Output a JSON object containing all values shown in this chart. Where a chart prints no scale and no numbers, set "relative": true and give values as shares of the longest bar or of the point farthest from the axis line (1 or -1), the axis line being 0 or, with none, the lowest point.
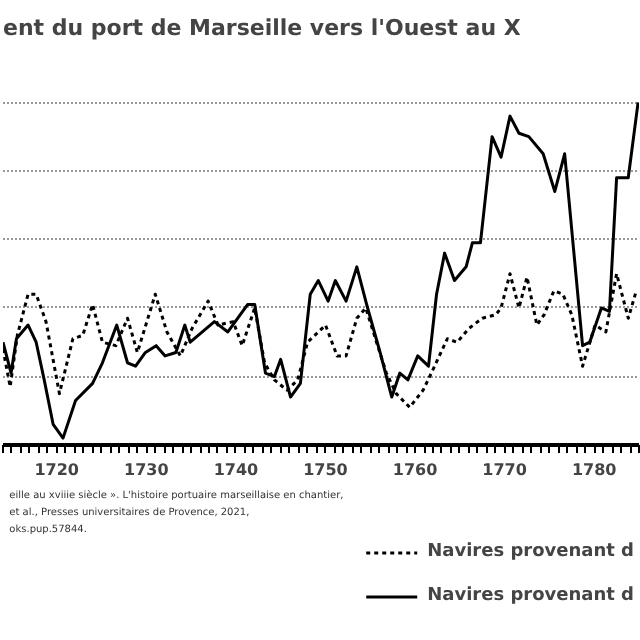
{
  "chart_data": {
    "type": "line",
    "title": "ent du port de Marseille vers l'Ouest au X",
    "relative": true,
    "xlim": [
      1714,
      1785
    ],
    "xticks": [
      1720,
      1730,
      1740,
      1750,
      1760,
      1770,
      1780
    ],
    "grid": "y",
    "legend": "bottom right",
    "annotations": [
      "eille au xviiie siècle ». L'histoire portuaire marseillaise en chantier,",
      "et al., Presses universitaires de Provence, 2021,",
      "oks.pup.57844."
    ],
    "series": [
      {
        "name": "Navires provenant d",
        "color": "#000000",
        "line_style": "dotted",
        "x": [
          1714.0,
          1714.8,
          1715.6,
          1716.8,
          1717.7,
          1718.8,
          1720.3,
          1721.8,
          1722.9,
          1724.0,
          1725.1,
          1726.6,
          1727.9,
          1729.0,
          1731.0,
          1732.3,
          1733.8,
          1735.1,
          1736.9,
          1738.0,
          1739.7,
          1740.7,
          1742.1,
          1743.2,
          1744.3,
          1745.7,
          1746.9,
          1748.0,
          1750.0,
          1751.3,
          1752.3,
          1753.5,
          1754.5,
          1755.7,
          1756.8,
          1757.9,
          1759.4,
          1760.9,
          1762.0,
          1763.6,
          1764.7,
          1766.0,
          1767.5,
          1769.0,
          1769.6,
          1770.6,
          1771.6,
          1772.5,
          1773.6,
          1774.4,
          1775.5,
          1776.5,
          1777.5,
          1778.7,
          1780.1,
          1781.3,
          1782.5,
          1783.8,
          1784.7
        ],
        "values": [
          0.28,
          0.17,
          0.32,
          0.44,
          0.44,
          0.36,
          0.15,
          0.31,
          0.32,
          0.41,
          0.3,
          0.29,
          0.37,
          0.27,
          0.44,
          0.33,
          0.26,
          0.34,
          0.42,
          0.35,
          0.36,
          0.29,
          0.4,
          0.24,
          0.19,
          0.16,
          0.19,
          0.3,
          0.35,
          0.26,
          0.26,
          0.37,
          0.4,
          0.3,
          0.21,
          0.15,
          0.11,
          0.16,
          0.22,
          0.31,
          0.3,
          0.34,
          0.37,
          0.38,
          0.4,
          0.5,
          0.4,
          0.49,
          0.35,
          0.38,
          0.45,
          0.44,
          0.38,
          0.23,
          0.35,
          0.33,
          0.5,
          0.37,
          0.45
        ]
      },
      {
        "name": "Navires provenant d",
        "color": "#000000",
        "line_style": "solid",
        "x": [
          1714.0,
          1714.9,
          1715.5,
          1716.8,
          1717.7,
          1718.6,
          1719.6,
          1720.7,
          1722.1,
          1724.0,
          1725.1,
          1726.7,
          1727.9,
          1728.8,
          1729.9,
          1731.1,
          1732.1,
          1733.3,
          1734.3,
          1734.9,
          1737.6,
          1739.1,
          1741.3,
          1742.1,
          1743.3,
          1744.3,
          1745.0,
          1746.1,
          1747.2,
          1748.3,
          1749.2,
          1750.3,
          1751.1,
          1752.3,
          1753.5,
          1754.6,
          1756.1,
          1757.4,
          1758.3,
          1759.2,
          1760.3,
          1761.5,
          1762.4,
          1763.3,
          1764.4,
          1765.7,
          1766.4,
          1767.3,
          1768.6,
          1769.6,
          1770.6,
          1771.6,
          1772.7,
          1774.3,
          1775.6,
          1776.7,
          1778.7,
          1779.5,
          1780.8,
          1781.7,
          1782.5,
          1783.8,
          1784.9
        ],
        "values": [
          0.3,
          0.21,
          0.31,
          0.35,
          0.3,
          0.19,
          0.06,
          0.02,
          0.13,
          0.18,
          0.24,
          0.35,
          0.24,
          0.23,
          0.27,
          0.29,
          0.26,
          0.27,
          0.35,
          0.3,
          0.36,
          0.33,
          0.41,
          0.41,
          0.21,
          0.2,
          0.25,
          0.14,
          0.18,
          0.44,
          0.48,
          0.42,
          0.48,
          0.42,
          0.52,
          0.41,
          0.27,
          0.14,
          0.21,
          0.19,
          0.26,
          0.23,
          0.44,
          0.56,
          0.48,
          0.52,
          0.59,
          0.59,
          0.9,
          0.84,
          0.96,
          0.91,
          0.9,
          0.85,
          0.74,
          0.85,
          0.29,
          0.3,
          0.4,
          0.39,
          0.78,
          0.78,
          1.0
        ]
      }
    ]
  }
}
